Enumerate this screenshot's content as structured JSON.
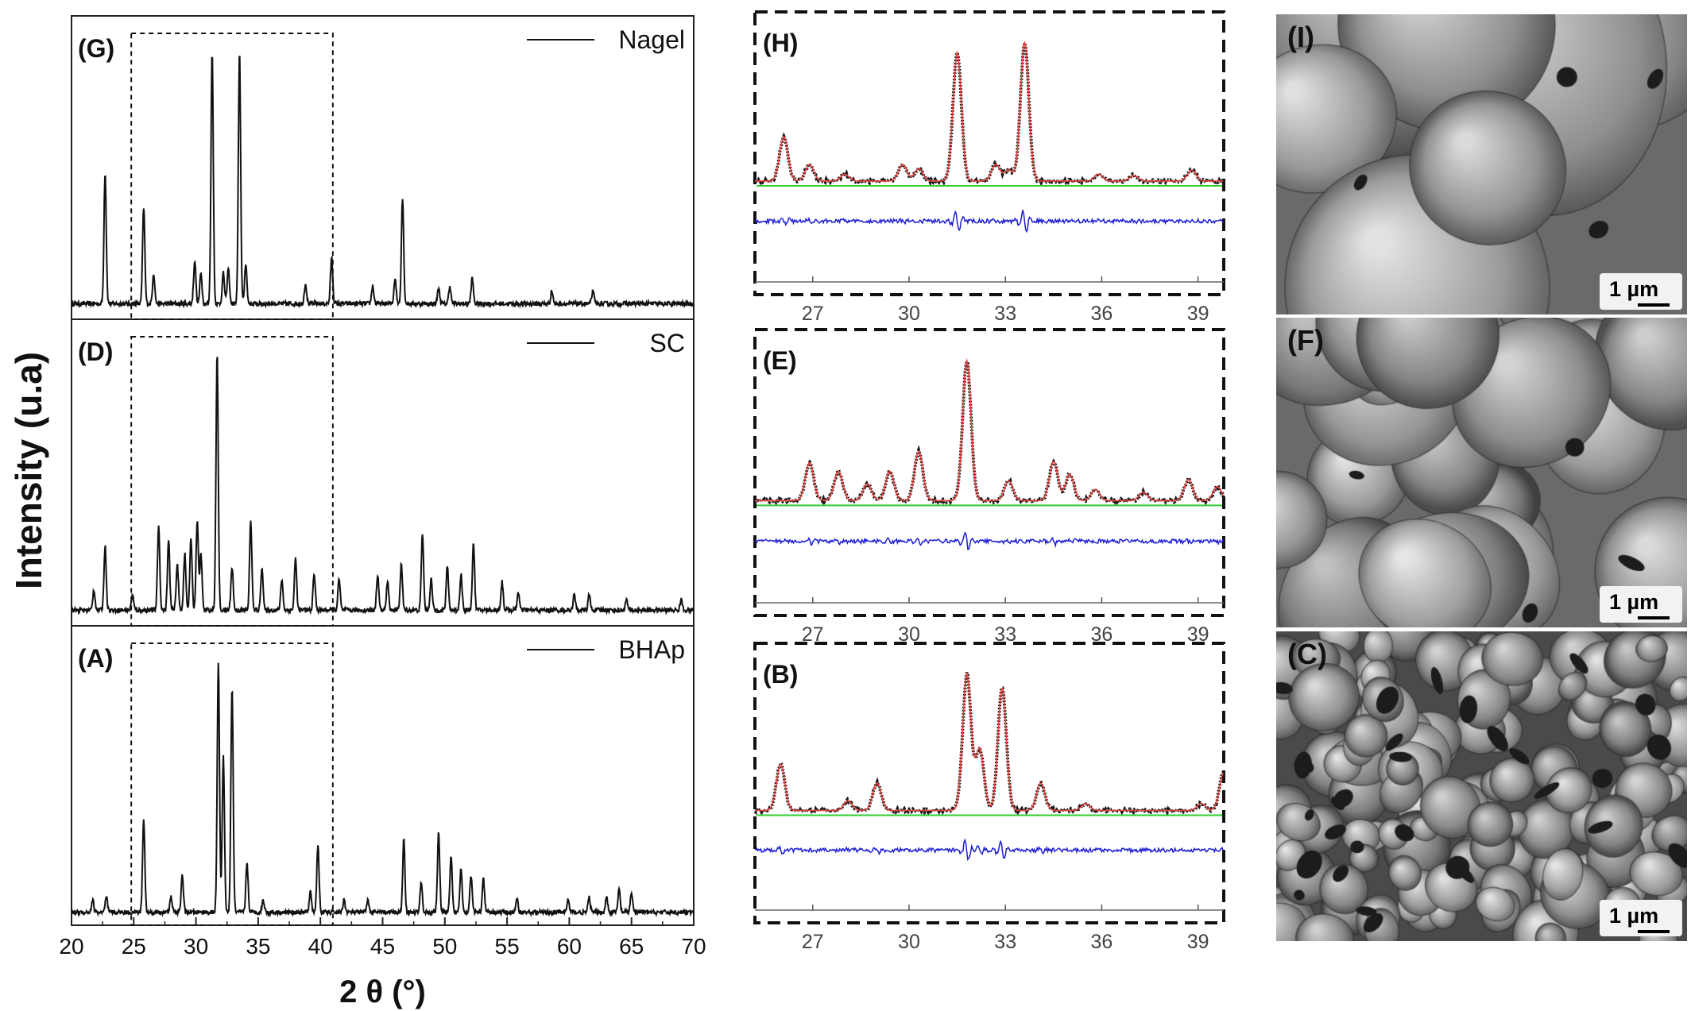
{
  "chart_data": [
    {
      "type": "line",
      "panel": "xrd-stack",
      "xlabel": "2 θ (°)",
      "ylabel": "Intensity (u.a)",
      "xlim": [
        20,
        70
      ],
      "xticks": [
        20,
        25,
        30,
        35,
        40,
        45,
        50,
        55,
        60,
        65,
        70
      ],
      "zoom_box": [
        24.8,
        41.0
      ],
      "series": [
        {
          "label": "(G)",
          "name": "Nagel",
          "baseline": 0.03,
          "peaks": [
            [
              22.7,
              0.52
            ],
            [
              25.8,
              0.38
            ],
            [
              26.6,
              0.12
            ],
            [
              29.9,
              0.17
            ],
            [
              30.4,
              0.12
            ],
            [
              31.3,
              1.0
            ],
            [
              32.2,
              0.12
            ],
            [
              32.6,
              0.14
            ],
            [
              33.5,
              1.0
            ],
            [
              34.0,
              0.16
            ],
            [
              38.8,
              0.08
            ],
            [
              40.9,
              0.18
            ],
            [
              44.2,
              0.07
            ],
            [
              46.0,
              0.1
            ],
            [
              46.6,
              0.42
            ],
            [
              49.5,
              0.06
            ],
            [
              50.4,
              0.07
            ],
            [
              52.2,
              0.1
            ],
            [
              58.6,
              0.05
            ],
            [
              61.9,
              0.05
            ]
          ]
        },
        {
          "label": "(D)",
          "name": "SC",
          "baseline": 0.03,
          "peaks": [
            [
              21.8,
              0.08
            ],
            [
              22.7,
              0.25
            ],
            [
              24.9,
              0.06
            ],
            [
              27.0,
              0.33
            ],
            [
              27.8,
              0.27
            ],
            [
              28.5,
              0.18
            ],
            [
              29.1,
              0.22
            ],
            [
              29.6,
              0.28
            ],
            [
              30.1,
              0.35
            ],
            [
              30.4,
              0.22
            ],
            [
              31.7,
              1.0
            ],
            [
              32.9,
              0.17
            ],
            [
              34.4,
              0.35
            ],
            [
              35.3,
              0.17
            ],
            [
              36.9,
              0.12
            ],
            [
              38.0,
              0.2
            ],
            [
              39.5,
              0.14
            ],
            [
              41.5,
              0.12
            ],
            [
              44.6,
              0.14
            ],
            [
              45.4,
              0.11
            ],
            [
              46.5,
              0.18
            ],
            [
              48.2,
              0.3
            ],
            [
              48.9,
              0.12
            ],
            [
              50.2,
              0.17
            ],
            [
              51.3,
              0.14
            ],
            [
              52.3,
              0.26
            ],
            [
              54.6,
              0.11
            ],
            [
              55.9,
              0.07
            ],
            [
              60.4,
              0.06
            ],
            [
              61.6,
              0.06
            ],
            [
              64.6,
              0.04
            ],
            [
              69.0,
              0.04
            ]
          ]
        },
        {
          "label": "(A)",
          "name": "BHAp",
          "baseline": 0.02,
          "peaks": [
            [
              21.7,
              0.05
            ],
            [
              22.8,
              0.06
            ],
            [
              25.8,
              0.37
            ],
            [
              28.0,
              0.06
            ],
            [
              28.9,
              0.15
            ],
            [
              31.8,
              1.0
            ],
            [
              32.2,
              0.62
            ],
            [
              32.9,
              0.9
            ],
            [
              34.1,
              0.2
            ],
            [
              35.4,
              0.05
            ],
            [
              39.2,
              0.08
            ],
            [
              39.8,
              0.27
            ],
            [
              41.9,
              0.05
            ],
            [
              43.8,
              0.05
            ],
            [
              46.7,
              0.29
            ],
            [
              48.1,
              0.12
            ],
            [
              49.5,
              0.32
            ],
            [
              50.5,
              0.22
            ],
            [
              51.3,
              0.18
            ],
            [
              52.1,
              0.15
            ],
            [
              53.1,
              0.13
            ],
            [
              55.8,
              0.05
            ],
            [
              59.9,
              0.05
            ],
            [
              61.6,
              0.06
            ],
            [
              63.0,
              0.06
            ],
            [
              64.0,
              0.09
            ],
            [
              65.0,
              0.08
            ]
          ]
        }
      ]
    },
    {
      "type": "line",
      "panel": "rietveld-stack",
      "xlim": [
        25.2,
        39.8
      ],
      "xticks": [
        27,
        30,
        33,
        36,
        39
      ],
      "series_names": [
        "observed",
        "calculated",
        "background",
        "difference"
      ],
      "series_colors": {
        "observed": "#1a1a1a",
        "calculated": "#e8403c",
        "background": "#33cc33",
        "difference": "#1d1dd6"
      },
      "panels": [
        {
          "label": "(H)",
          "peaks": [
            [
              26.1,
              0.32
            ],
            [
              26.9,
              0.12
            ],
            [
              28.0,
              0.05
            ],
            [
              29.8,
              0.12
            ],
            [
              30.3,
              0.09
            ],
            [
              31.5,
              0.93
            ],
            [
              32.7,
              0.12
            ],
            [
              33.1,
              0.08
            ],
            [
              33.6,
              1.0
            ],
            [
              35.9,
              0.05
            ],
            [
              37.0,
              0.04
            ],
            [
              38.8,
              0.08
            ]
          ]
        },
        {
          "label": "(E)",
          "peaks": [
            [
              26.9,
              0.27
            ],
            [
              27.8,
              0.21
            ],
            [
              28.7,
              0.12
            ],
            [
              29.4,
              0.21
            ],
            [
              30.3,
              0.35
            ],
            [
              31.8,
              1.0
            ],
            [
              33.1,
              0.14
            ],
            [
              34.5,
              0.28
            ],
            [
              35.0,
              0.19
            ],
            [
              35.8,
              0.08
            ],
            [
              37.3,
              0.06
            ],
            [
              38.7,
              0.15
            ],
            [
              39.6,
              0.1
            ]
          ]
        },
        {
          "label": "(B)",
          "peaks": [
            [
              26.0,
              0.34
            ],
            [
              28.1,
              0.07
            ],
            [
              29.0,
              0.2
            ],
            [
              31.8,
              1.0
            ],
            [
              32.2,
              0.45
            ],
            [
              32.9,
              0.9
            ],
            [
              34.1,
              0.2
            ],
            [
              35.5,
              0.05
            ],
            [
              39.1,
              0.05
            ],
            [
              39.8,
              0.28
            ]
          ]
        }
      ]
    }
  ],
  "micrographs": [
    {
      "label": "(I)",
      "scale": "1 µm",
      "style": "large-grains"
    },
    {
      "label": "(F)",
      "scale": "1 µm",
      "style": "medium-grains"
    },
    {
      "label": "(C)",
      "scale": "1 µm",
      "style": "small-grains"
    }
  ]
}
